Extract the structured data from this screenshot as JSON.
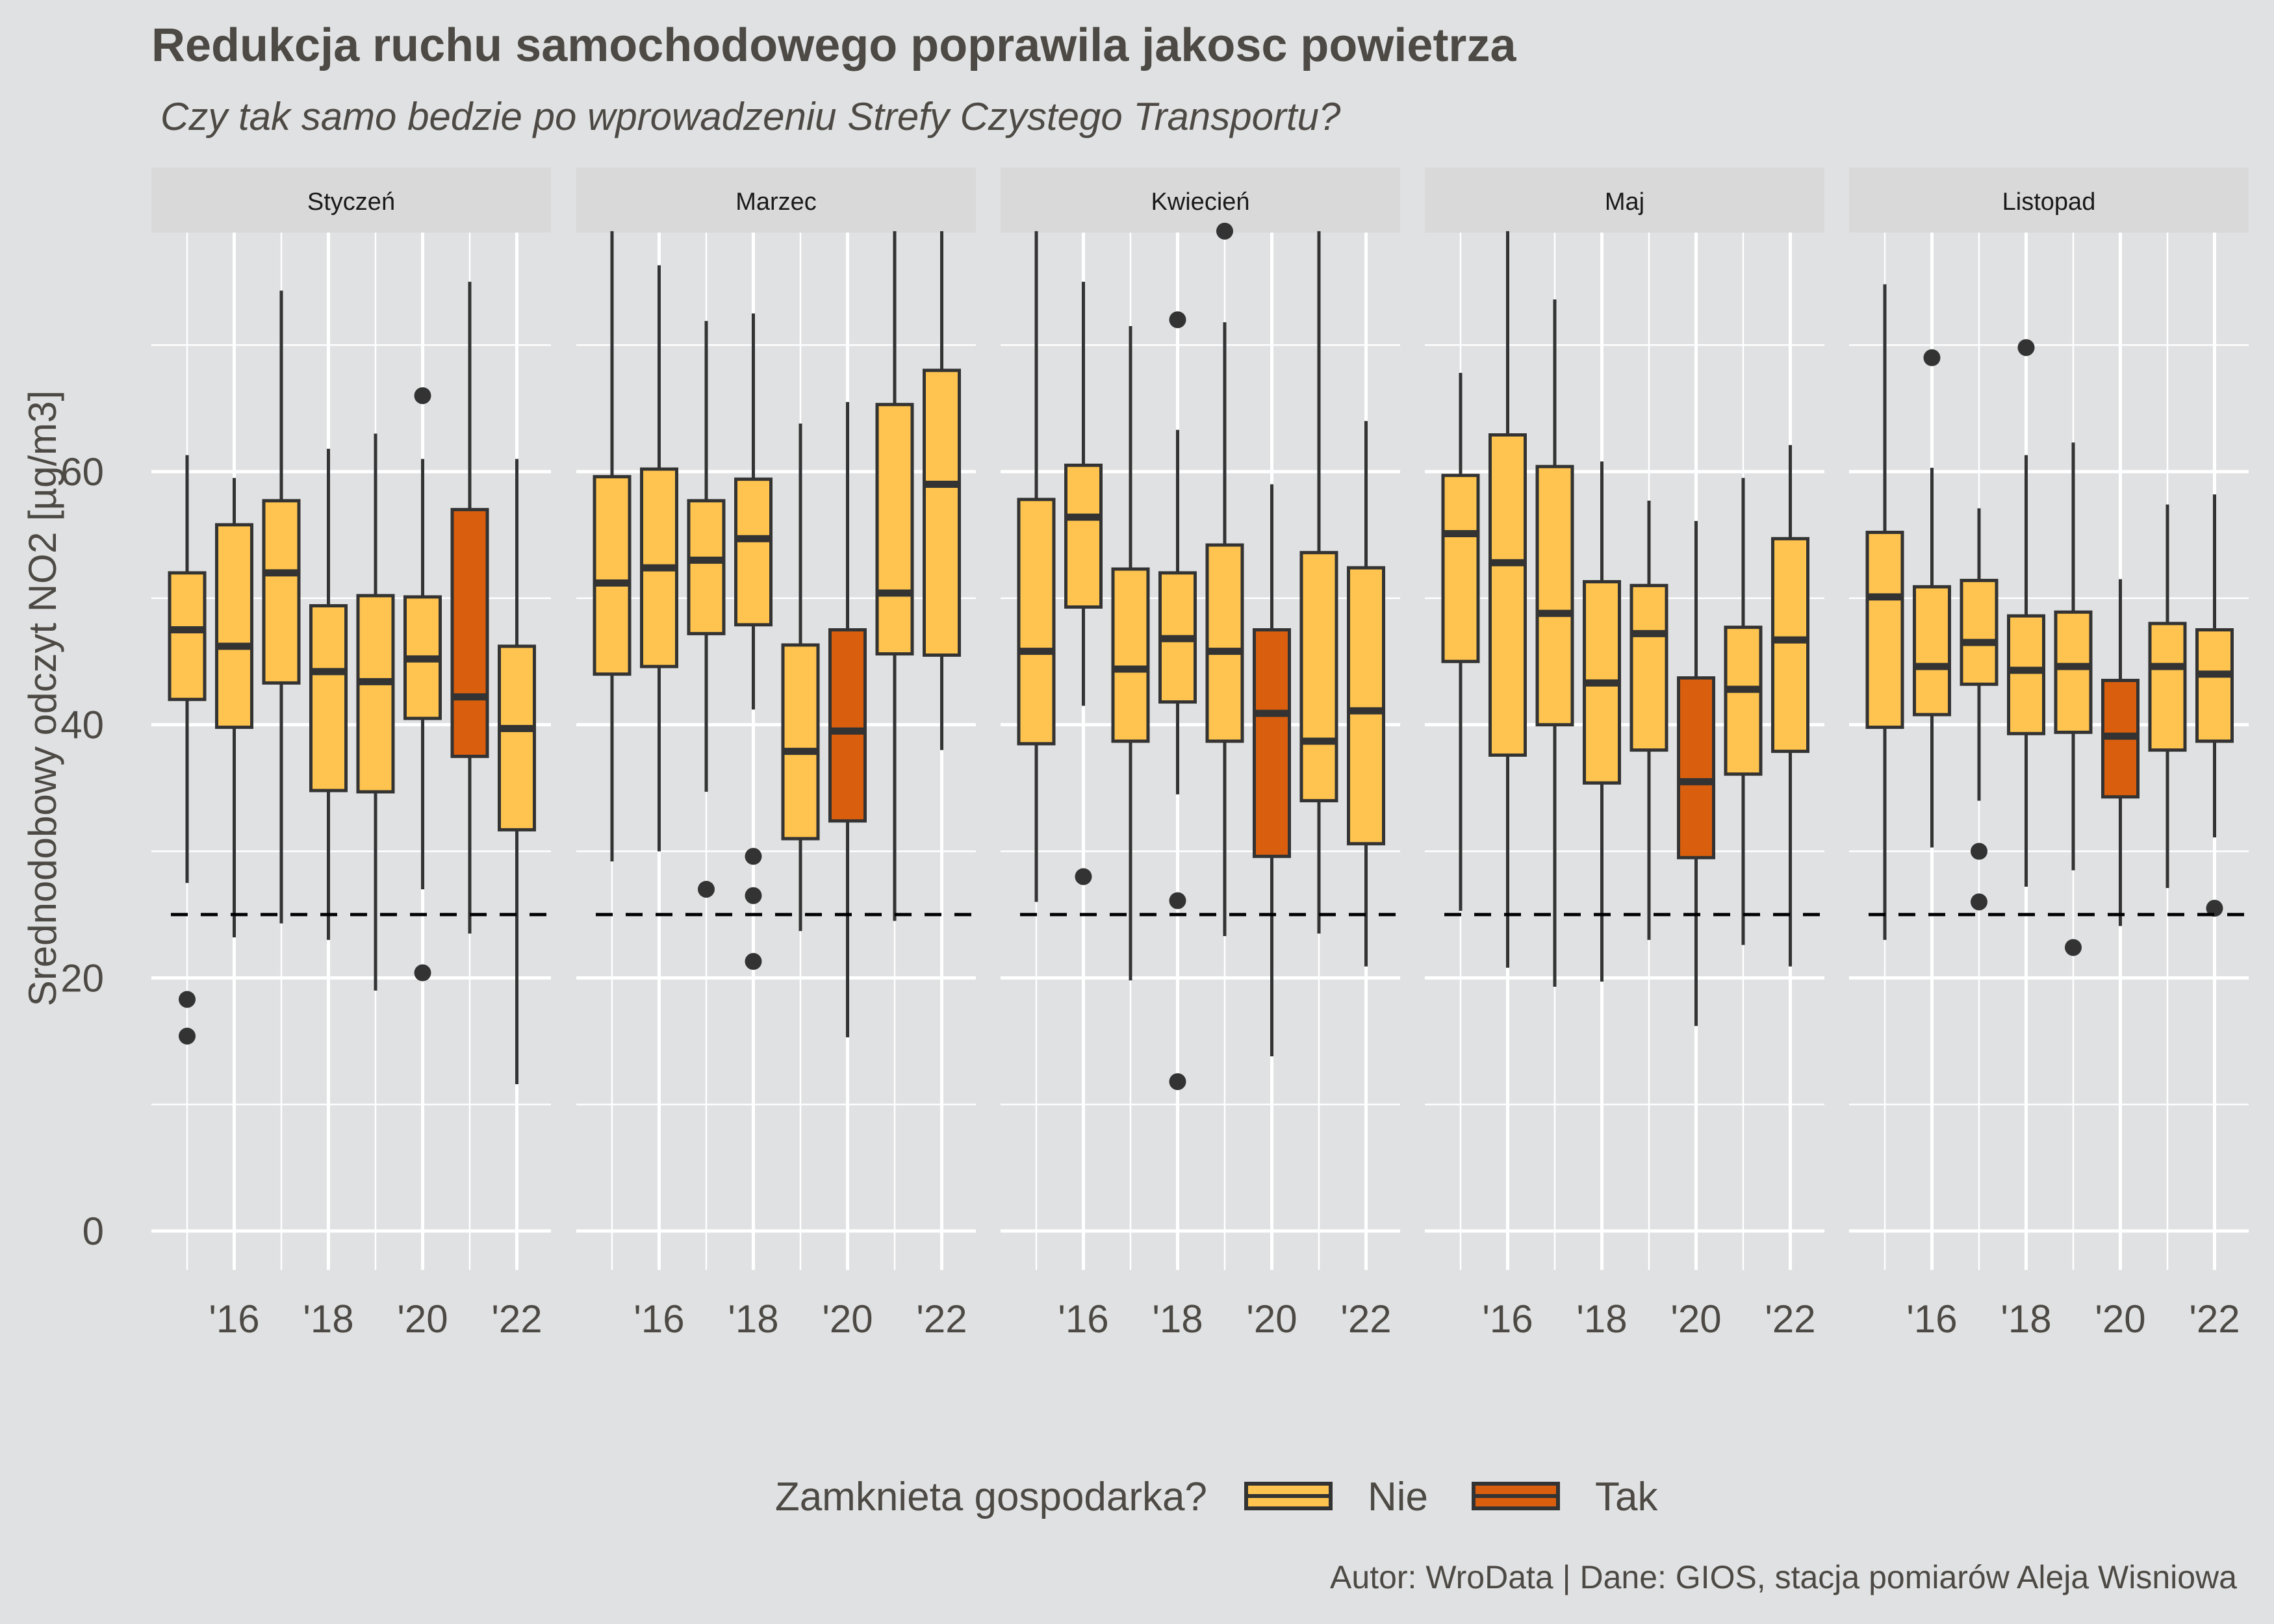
{
  "colors": {
    "background": "#e0e1e2",
    "strip": "#d9d9d9",
    "grid": "#ffffff",
    "box_stroke": "#333333",
    "text_dark": "#4d4a45",
    "nie": "#fec44f",
    "tak": "#d95f0e"
  },
  "chart_data": {
    "type": "boxplot",
    "title": "Redukcja ruchu samochodowego poprawila jakosc powietrza",
    "subtitle": "Czy tak samo bedzie po wprowadzeniu Strefy Czystego Transportu?",
    "caption": "Autor: WroData | Dane: GIOS, stacja pomiarów Aleja Wisniowa",
    "ylabel": "Srednodobowy odczyt NO2 [µg/m3]",
    "ylim": [
      0,
      80
    ],
    "yticks": [
      0,
      20,
      40,
      60
    ],
    "x_years": [
      2015,
      2016,
      2017,
      2018,
      2019,
      2020,
      2021,
      2022
    ],
    "x_tick_labels": [
      "'16",
      "'18",
      "'20",
      "'22"
    ],
    "x_tick_years": [
      2016,
      2018,
      2020,
      2022
    ],
    "reference_line": 25,
    "legend": {
      "title": "Zamknieta gospodarka?",
      "position": "bottom",
      "items": [
        {
          "key": "nie",
          "label": "Nie"
        },
        {
          "key": "tak",
          "label": "Tak"
        }
      ]
    },
    "panels": [
      {
        "name": "Styczeń",
        "boxes": [
          {
            "year": 2015,
            "q1": 42,
            "median": 47.5,
            "q3": 52,
            "low": 27.5,
            "high": 61.3,
            "group": "nie",
            "outliers": [
              18.3,
              15.4
            ]
          },
          {
            "year": 2016,
            "q1": 39.8,
            "median": 46.2,
            "q3": 55.8,
            "low": 23.2,
            "high": 59.5,
            "group": "nie",
            "outliers": []
          },
          {
            "year": 2017,
            "q1": 43.3,
            "median": 52,
            "q3": 57.7,
            "low": 24.3,
            "high": 74.3,
            "group": "nie",
            "outliers": []
          },
          {
            "year": 2018,
            "q1": 34.8,
            "median": 44.2,
            "q3": 49.4,
            "low": 23,
            "high": 61.8,
            "group": "nie",
            "outliers": []
          },
          {
            "year": 2019,
            "q1": 34.7,
            "median": 43.4,
            "q3": 50.2,
            "low": 19,
            "high": 63,
            "group": "nie",
            "outliers": []
          },
          {
            "year": 2020,
            "q1": 40.5,
            "median": 45.2,
            "q3": 50.1,
            "low": 27,
            "high": 61,
            "group": "nie",
            "outliers": [
              66,
              20.4
            ]
          },
          {
            "year": 2021,
            "q1": 37.5,
            "median": 42.2,
            "q3": 57,
            "low": 23.5,
            "high": 75,
            "group": "tak",
            "outliers": []
          },
          {
            "year": 2022,
            "q1": 31.7,
            "median": 39.7,
            "q3": 46.2,
            "low": 11.6,
            "high": 61,
            "group": "nie",
            "outliers": []
          }
        ]
      },
      {
        "name": "Marzec",
        "boxes": [
          {
            "year": 2015,
            "q1": 44,
            "median": 51.2,
            "q3": 59.6,
            "low": 29.2,
            "high": 79,
            "group": "nie",
            "outliers": []
          },
          {
            "year": 2016,
            "q1": 44.6,
            "median": 52.4,
            "q3": 60.2,
            "low": 30,
            "high": 76.3,
            "group": "nie",
            "outliers": []
          },
          {
            "year": 2017,
            "q1": 47.2,
            "median": 53,
            "q3": 57.7,
            "low": 34.7,
            "high": 71.9,
            "group": "nie",
            "outliers": [
              27
            ]
          },
          {
            "year": 2018,
            "q1": 47.9,
            "median": 54.7,
            "q3": 59.4,
            "low": 41.2,
            "high": 72.5,
            "group": "nie",
            "outliers": [
              29.6,
              26.5,
              21.3
            ]
          },
          {
            "year": 2019,
            "q1": 31,
            "median": 37.9,
            "q3": 46.3,
            "low": 23.7,
            "high": 63.8,
            "group": "nie",
            "outliers": []
          },
          {
            "year": 2020,
            "q1": 32.4,
            "median": 39.5,
            "q3": 47.5,
            "low": 15.3,
            "high": 65.5,
            "group": "tak",
            "outliers": []
          },
          {
            "year": 2021,
            "q1": 45.6,
            "median": 50.4,
            "q3": 65.3,
            "low": 24.5,
            "high": 79,
            "group": "nie",
            "outliers": []
          },
          {
            "year": 2022,
            "q1": 45.5,
            "median": 59,
            "q3": 68,
            "low": 38,
            "high": 79,
            "group": "nie",
            "outliers": []
          }
        ]
      },
      {
        "name": "Kwiecień",
        "boxes": [
          {
            "year": 2015,
            "q1": 38.5,
            "median": 45.8,
            "q3": 57.8,
            "low": 26,
            "high": 79,
            "group": "nie",
            "outliers": []
          },
          {
            "year": 2016,
            "q1": 49.3,
            "median": 56.4,
            "q3": 60.5,
            "low": 41.5,
            "high": 75,
            "group": "nie",
            "outliers": [
              28
            ]
          },
          {
            "year": 2017,
            "q1": 38.7,
            "median": 44.4,
            "q3": 52.3,
            "low": 19.8,
            "high": 71.5,
            "group": "nie",
            "outliers": []
          },
          {
            "year": 2018,
            "q1": 41.8,
            "median": 46.8,
            "q3": 52,
            "low": 34.5,
            "high": 63.3,
            "group": "nie",
            "outliers": [
              72,
              26.1,
              11.8
            ]
          },
          {
            "year": 2019,
            "q1": 38.7,
            "median": 45.8,
            "q3": 54.2,
            "low": 23.3,
            "high": 71.8,
            "group": "nie",
            "outliers": [
              79
            ]
          },
          {
            "year": 2020,
            "q1": 29.6,
            "median": 40.9,
            "q3": 47.5,
            "low": 13.8,
            "high": 59,
            "group": "tak",
            "outliers": []
          },
          {
            "year": 2021,
            "q1": 34,
            "median": 38.7,
            "q3": 53.6,
            "low": 23.5,
            "high": 79,
            "group": "nie",
            "outliers": []
          },
          {
            "year": 2022,
            "q1": 30.6,
            "median": 41.1,
            "q3": 52.4,
            "low": 20.9,
            "high": 64,
            "group": "nie",
            "outliers": []
          }
        ]
      },
      {
        "name": "Maj",
        "boxes": [
          {
            "year": 2015,
            "q1": 45,
            "median": 55.1,
            "q3": 59.7,
            "low": 25.3,
            "high": 67.8,
            "group": "nie",
            "outliers": []
          },
          {
            "year": 2016,
            "q1": 37.6,
            "median": 52.8,
            "q3": 62.9,
            "low": 20.8,
            "high": 79,
            "group": "nie",
            "outliers": []
          },
          {
            "year": 2017,
            "q1": 40,
            "median": 48.8,
            "q3": 60.4,
            "low": 19.3,
            "high": 73.6,
            "group": "nie",
            "outliers": []
          },
          {
            "year": 2018,
            "q1": 35.4,
            "median": 43.3,
            "q3": 51.3,
            "low": 19.7,
            "high": 60.8,
            "group": "nie",
            "outliers": []
          },
          {
            "year": 2019,
            "q1": 38,
            "median": 47.2,
            "q3": 51,
            "low": 23,
            "high": 57.7,
            "group": "nie",
            "outliers": []
          },
          {
            "year": 2020,
            "q1": 29.5,
            "median": 35.5,
            "q3": 43.7,
            "low": 16.2,
            "high": 56.1,
            "group": "tak",
            "outliers": []
          },
          {
            "year": 2021,
            "q1": 36.1,
            "median": 42.8,
            "q3": 47.7,
            "low": 22.6,
            "high": 59.5,
            "group": "nie",
            "outliers": []
          },
          {
            "year": 2022,
            "q1": 37.9,
            "median": 46.7,
            "q3": 54.7,
            "low": 20.9,
            "high": 62.1,
            "group": "nie",
            "outliers": []
          }
        ]
      },
      {
        "name": "Listopad",
        "boxes": [
          {
            "year": 2015,
            "q1": 39.8,
            "median": 50.1,
            "q3": 55.2,
            "low": 23,
            "high": 74.8,
            "group": "nie",
            "outliers": []
          },
          {
            "year": 2016,
            "q1": 40.8,
            "median": 44.6,
            "q3": 50.9,
            "low": 30.3,
            "high": 60.3,
            "group": "nie",
            "outliers": [
              69
            ]
          },
          {
            "year": 2017,
            "q1": 43.2,
            "median": 46.5,
            "q3": 51.4,
            "low": 34,
            "high": 57.1,
            "group": "nie",
            "outliers": [
              30,
              26
            ]
          },
          {
            "year": 2018,
            "q1": 39.3,
            "median": 44.3,
            "q3": 48.6,
            "low": 27.2,
            "high": 61.3,
            "group": "nie",
            "outliers": [
              69.8
            ]
          },
          {
            "year": 2019,
            "q1": 39.4,
            "median": 44.6,
            "q3": 48.9,
            "low": 28.5,
            "high": 62.3,
            "group": "nie",
            "outliers": [
              22.4
            ]
          },
          {
            "year": 2020,
            "q1": 34.3,
            "median": 39.1,
            "q3": 43.5,
            "low": 24.1,
            "high": 51.5,
            "group": "tak",
            "outliers": []
          },
          {
            "year": 2021,
            "q1": 38,
            "median": 44.6,
            "q3": 48,
            "low": 27.1,
            "high": 57.4,
            "group": "nie",
            "outliers": []
          },
          {
            "year": 2022,
            "q1": 38.7,
            "median": 44,
            "q3": 47.5,
            "low": 31.1,
            "high": 58.2,
            "group": "nie",
            "outliers": [
              25.5
            ]
          }
        ]
      }
    ]
  }
}
